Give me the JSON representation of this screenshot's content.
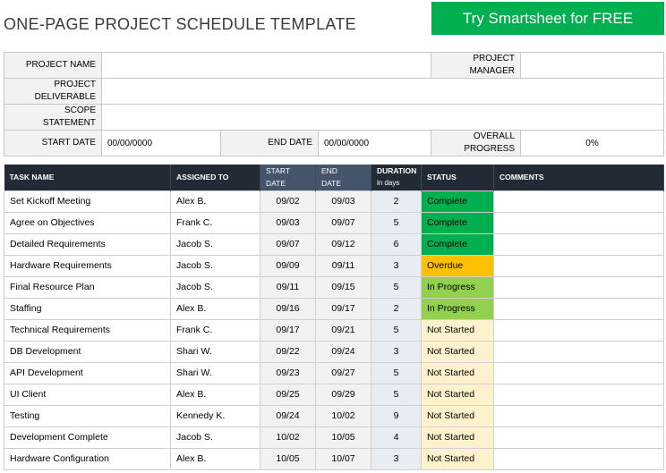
{
  "header": {
    "title": "ONE-PAGE PROJECT SCHEDULE TEMPLATE",
    "cta_label": "Try Smartsheet for FREE",
    "cta_color": "#00b050"
  },
  "project_info": {
    "project_name_label": "PROJECT NAME",
    "project_name_value": "",
    "project_manager_label": "PROJECT MANAGER",
    "project_manager_value": "",
    "project_deliverable_label": "PROJECT DELIVERABLE",
    "project_deliverable_value": "",
    "scope_statement_label": "SCOPE STATEMENT",
    "scope_statement_value": "",
    "start_date_label": "START DATE",
    "start_date_value": "00/00/0000",
    "end_date_label": "END DATE",
    "end_date_value": "00/00/0000",
    "overall_progress_label": "OVERALL PROGRESS",
    "overall_progress_value": "0%"
  },
  "task_table": {
    "columns": {
      "task_name": "TASK NAME",
      "assigned_to": "ASSIGNED TO",
      "start_date": "START DATE",
      "end_date": "END DATE",
      "duration": "DURATION",
      "duration_unit": "in days",
      "status": "STATUS",
      "comments": "COMMENTS"
    },
    "status_colors": {
      "Complete": "#00b050",
      "Overdue": "#ffc000",
      "In Progress": "#92d050",
      "Not Started": "#fff2cc"
    },
    "rows": [
      {
        "task": "Set Kickoff Meeting",
        "assigned": "Alex B.",
        "start": "09/02",
        "end": "09/03",
        "duration": "2",
        "status": "Complete",
        "comments": ""
      },
      {
        "task": "Agree on Objectives",
        "assigned": "Frank C.",
        "start": "09/03",
        "end": "09/07",
        "duration": "5",
        "status": "Complete",
        "comments": ""
      },
      {
        "task": "Detailed Requirements",
        "assigned": "Jacob S.",
        "start": "09/07",
        "end": "09/12",
        "duration": "6",
        "status": "Complete",
        "comments": ""
      },
      {
        "task": "Hardware Requirements",
        "assigned": "Jacob S.",
        "start": "09/09",
        "end": "09/11",
        "duration": "3",
        "status": "Overdue",
        "comments": ""
      },
      {
        "task": "Final Resource Plan",
        "assigned": "Jacob S.",
        "start": "09/11",
        "end": "09/15",
        "duration": "5",
        "status": "In Progress",
        "comments": ""
      },
      {
        "task": "Staffing",
        "assigned": "Alex B.",
        "start": "09/16",
        "end": "09/17",
        "duration": "2",
        "status": "In Progress",
        "comments": ""
      },
      {
        "task": "Technical Requirements",
        "assigned": "Frank C.",
        "start": "09/17",
        "end": "09/21",
        "duration": "5",
        "status": "Not Started",
        "comments": ""
      },
      {
        "task": "DB Development",
        "assigned": "Shari W.",
        "start": "09/22",
        "end": "09/24",
        "duration": "3",
        "status": "Not Started",
        "comments": ""
      },
      {
        "task": "API Development",
        "assigned": "Shari W.",
        "start": "09/23",
        "end": "09/27",
        "duration": "5",
        "status": "Not Started",
        "comments": ""
      },
      {
        "task": "UI Client",
        "assigned": "Alex B.",
        "start": "09/25",
        "end": "09/29",
        "duration": "5",
        "status": "Not Started",
        "comments": ""
      },
      {
        "task": "Testing",
        "assigned": "Kennedy K.",
        "start": "09/24",
        "end": "10/02",
        "duration": "9",
        "status": "Not Started",
        "comments": ""
      },
      {
        "task": "Development Complete",
        "assigned": "Jacob S.",
        "start": "10/02",
        "end": "10/05",
        "duration": "4",
        "status": "Not Started",
        "comments": ""
      },
      {
        "task": "Hardware Configuration",
        "assigned": "Alex B.",
        "start": "10/05",
        "end": "10/07",
        "duration": "3",
        "status": "Not Started",
        "comments": ""
      }
    ]
  }
}
